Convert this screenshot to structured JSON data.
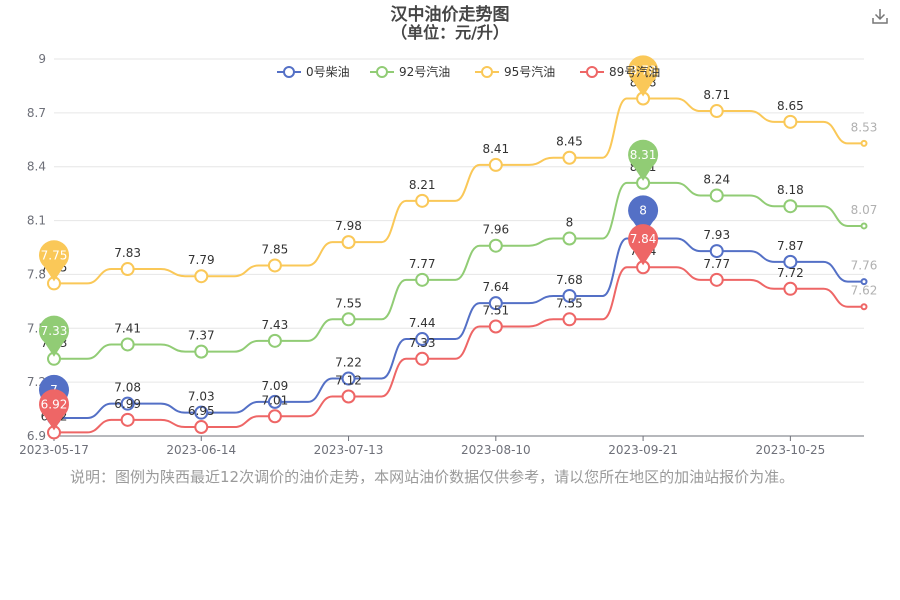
{
  "chart_data": {
    "type": "line",
    "title": "汉中油价走势图",
    "subtitle": "（单位：元/升）",
    "ylim": [
      6.9,
      9
    ],
    "y_ticks": [
      "6.9",
      "7.2",
      "7.5",
      "7.8",
      "8.1",
      "8.4",
      "8.7",
      "9"
    ],
    "x_tick_labels": [
      "2023-05-17",
      "2023-06-14",
      "2023-07-13",
      "2023-08-10",
      "2023-09-21",
      "2023-10-25"
    ],
    "legend_position": "top-center",
    "grid": true,
    "x": [
      "2023-05-17",
      "2023-05-31",
      "2023-06-14",
      "2023-06-28",
      "2023-07-13",
      "2023-07-27",
      "2023-08-10",
      "2023-08-24",
      "2023-09-21",
      "2023-10-09",
      "2023-10-25",
      "2023-11-08"
    ],
    "series": [
      {
        "name": "0号柴油",
        "color": "#5470c6",
        "values": [
          7,
          7.08,
          7.03,
          7.09,
          7.22,
          7.44,
          7.64,
          7.68,
          8,
          7.93,
          7.87,
          7.76
        ],
        "max_label": "8",
        "min_label": "7"
      },
      {
        "name": "92号汽油",
        "color": "#91cc75",
        "values": [
          7.33,
          7.41,
          7.37,
          7.43,
          7.55,
          7.77,
          7.96,
          8,
          8.31,
          8.24,
          8.18,
          8.07
        ],
        "max_label": "8.31",
        "min_label": "7.33"
      },
      {
        "name": "95号汽油",
        "color": "#fac858",
        "values": [
          7.75,
          7.83,
          7.79,
          7.85,
          7.98,
          8.21,
          8.41,
          8.45,
          8.78,
          8.71,
          8.65,
          8.53
        ],
        "max_label": "8.78",
        "min_label": "7.75"
      },
      {
        "name": "89号汽油",
        "color": "#ee6666",
        "values": [
          6.92,
          6.99,
          6.95,
          7.01,
          7.12,
          7.33,
          7.51,
          7.55,
          7.84,
          7.77,
          7.72,
          7.62
        ],
        "max_label": "7.84",
        "min_label": "6.92"
      }
    ]
  },
  "note": "说明：图例为陕西最近12次调价的油价走势，本网站油价数据仅供参考，请以您所在地区的加油站报价为准。",
  "download_icon": "download-icon"
}
